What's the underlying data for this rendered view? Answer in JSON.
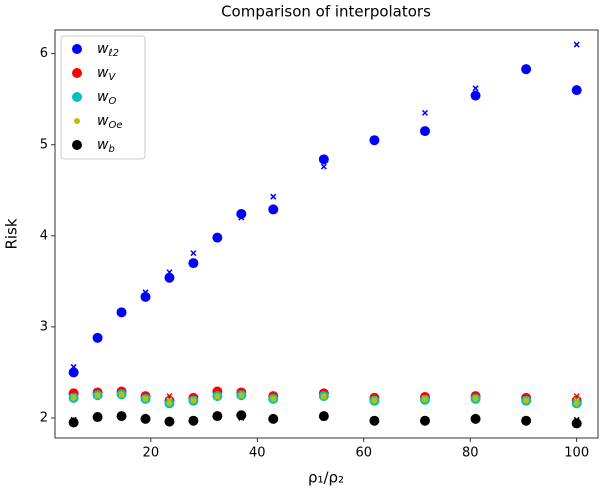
{
  "chart_data": {
    "type": "scatter",
    "title": "Comparison of interpolators",
    "xlabel": "ρ₁/ρ₂",
    "ylabel": "Risk",
    "x": [
      5.5,
      10,
      14.5,
      19,
      23.5,
      28,
      32.5,
      37,
      43,
      52.5,
      62,
      71.5,
      81,
      90.5,
      100
    ],
    "xlim": [
      2,
      104
    ],
    "ylim": [
      1.78,
      6.26
    ],
    "xticks": [
      20,
      40,
      60,
      80,
      100
    ],
    "yticks": [
      2,
      3,
      4,
      5,
      6
    ],
    "legend": "upper left",
    "series": [
      {
        "name": "w",
        "name_subscript": "ℓ2",
        "color": "#0000ff",
        "values": [
          2.5,
          2.88,
          3.16,
          3.33,
          3.54,
          3.7,
          3.98,
          4.24,
          4.29,
          4.84,
          5.05,
          5.15,
          5.54,
          5.83,
          5.6
        ],
        "cross_values": [
          2.56,
          2.88,
          3.17,
          3.38,
          3.6,
          3.81,
          3.98,
          4.2,
          4.43,
          4.76,
          5.05,
          5.35,
          5.62,
          5.83,
          6.1
        ]
      },
      {
        "name": "w",
        "name_subscript": "V",
        "color": "#ff0000",
        "values": [
          2.27,
          2.28,
          2.29,
          2.24,
          2.19,
          2.22,
          2.29,
          2.28,
          2.24,
          2.27,
          2.22,
          2.23,
          2.24,
          2.22,
          2.19
        ],
        "cross_values": [
          2.29,
          2.27,
          2.3,
          2.25,
          2.24,
          2.23,
          2.26,
          2.27,
          2.25,
          2.27,
          2.24,
          2.24,
          2.25,
          2.23,
          2.24
        ]
      },
      {
        "name": "w",
        "name_subscript": "O",
        "color": "#00bfbf",
        "values": [
          2.22,
          2.25,
          2.26,
          2.21,
          2.16,
          2.19,
          2.24,
          2.25,
          2.21,
          2.24,
          2.19,
          2.2,
          2.21,
          2.19,
          2.16
        ],
        "cross_values": [
          2.24,
          2.25,
          2.26,
          2.22,
          2.2,
          2.2,
          2.23,
          2.24,
          2.21,
          2.23,
          2.2,
          2.21,
          2.22,
          2.2,
          2.2
        ]
      },
      {
        "name": "w",
        "name_subscript": "Oe",
        "color": "#bfbf00",
        "values": [
          2.22,
          2.25,
          2.26,
          2.21,
          2.16,
          2.19,
          2.24,
          2.25,
          2.21,
          2.24,
          2.19,
          2.2,
          2.21,
          2.19,
          2.16
        ],
        "cross_values": [
          2.23,
          2.24,
          2.25,
          2.21,
          2.19,
          2.2,
          2.23,
          2.24,
          2.21,
          2.23,
          2.2,
          2.21,
          2.22,
          2.2,
          2.19
        ]
      },
      {
        "name": "w",
        "name_subscript": "b",
        "color": "#000000",
        "values": [
          1.95,
          2.01,
          2.02,
          1.99,
          1.96,
          1.97,
          2.02,
          2.03,
          1.99,
          2.02,
          1.97,
          1.97,
          1.99,
          1.97,
          1.94
        ],
        "cross_values": [
          1.98,
          2.0,
          2.01,
          1.99,
          1.97,
          1.98,
          2.01,
          2.0,
          1.99,
          2.0,
          1.98,
          1.98,
          1.99,
          1.98,
          1.98
        ]
      }
    ]
  }
}
